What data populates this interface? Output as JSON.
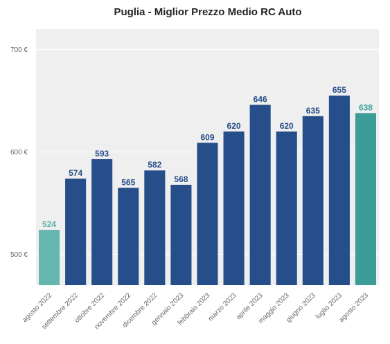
{
  "chart_data": {
    "type": "bar",
    "title": "Puglia - Miglior Prezzo Medio RC Auto",
    "xlabel": "",
    "ylabel": "",
    "categories": [
      "agosto 2022",
      "settembre 2022",
      "ottobre 2022",
      "novembre 2022",
      "dicembre 2022",
      "gennaio 2023",
      "febbraio 2023",
      "marzo 2023",
      "aprile 2023",
      "maggio 2023",
      "giugno 2023",
      "luglio 2023",
      "agosto 2023"
    ],
    "values": [
      524,
      574,
      593,
      565,
      582,
      568,
      609,
      620,
      646,
      620,
      635,
      655,
      638
    ],
    "data_labels": [
      "524",
      "574",
      "593",
      "565",
      "582",
      "568",
      "609",
      "620",
      "646",
      "620",
      "635",
      "655",
      "638"
    ],
    "y_ticks": [
      500,
      600,
      700
    ],
    "y_tick_labels": [
      "500 €",
      "600 €",
      "700 €"
    ],
    "ylim": [
      470,
      720
    ],
    "grid": true,
    "legend": "none",
    "colors": {
      "default_bar": "#264e8a",
      "first_bar": "#66b6b0",
      "last_bar": "#3b9c98",
      "default_label": "#264e8a",
      "first_label": "#55b0ab",
      "last_label": "#3aa39f",
      "plot_background": "#efefef",
      "grid": "#ffffff"
    }
  }
}
